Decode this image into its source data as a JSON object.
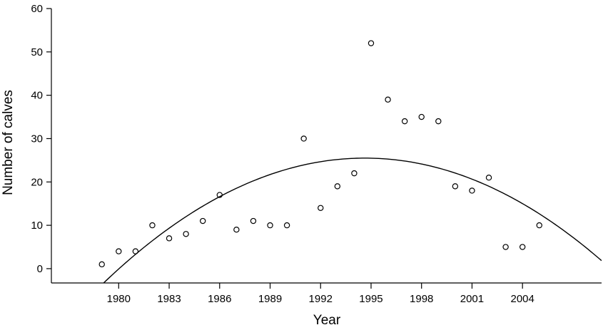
{
  "chart_data": {
    "type": "scatter",
    "xlabel": "Year",
    "ylabel": "Number of calves",
    "xlim": [
      1976,
      2008.7
    ],
    "ylim": [
      -3.3,
      60
    ],
    "x_ticks": [
      1980,
      1983,
      1986,
      1989,
      1992,
      1995,
      1998,
      2001,
      2004
    ],
    "y_ticks": [
      0,
      10,
      20,
      30,
      40,
      50,
      60
    ],
    "grid": false,
    "series": [
      {
        "x": [
          1979,
          1980,
          1981,
          1982,
          1983,
          1984,
          1985,
          1986,
          1987,
          1988,
          1989,
          1990,
          1991,
          1992,
          1993,
          1994,
          1995,
          1996,
          1997,
          1998,
          1999,
          2000,
          2001,
          2002,
          2003,
          2004,
          2005
        ],
        "y": [
          1,
          4,
          4,
          10,
          7,
          8,
          11,
          17,
          9,
          11,
          10,
          10,
          30,
          14,
          19,
          22,
          52,
          39,
          34,
          35,
          34,
          19,
          18,
          21,
          5,
          5,
          10
        ]
      }
    ],
    "fit_curve": {
      "type": "quadratic",
      "vertex_x": 1994.63,
      "vertex_y": 25.5,
      "a": -0.1195,
      "x_range": [
        1976,
        2008.7
      ]
    }
  }
}
